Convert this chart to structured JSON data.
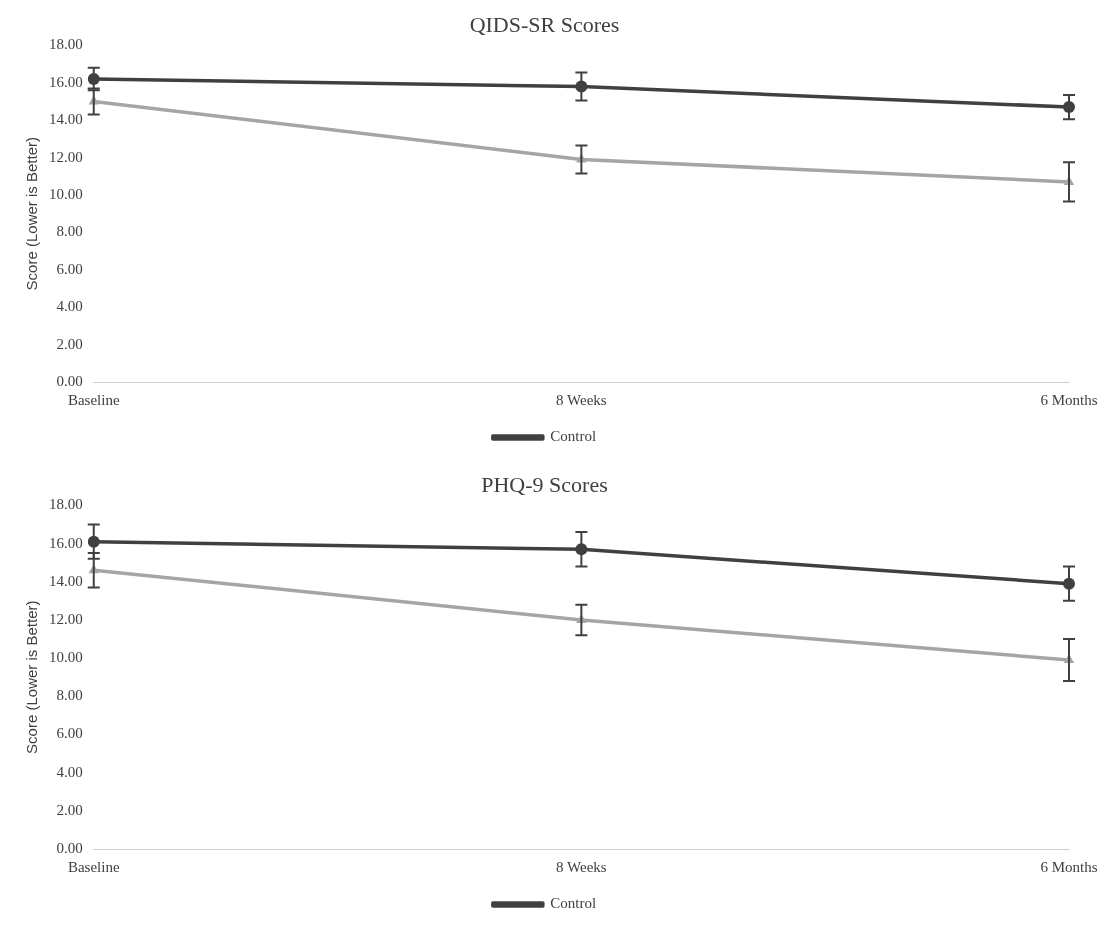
{
  "chart_data": [
    {
      "type": "line",
      "title": "QIDS-SR Scores",
      "ylabel": "Score (Lower is Better)",
      "categories": [
        "Baseline",
        "8 Weeks",
        "6 Months"
      ],
      "series": [
        {
          "name": "Control",
          "color": "#404040",
          "marker": "circle",
          "values": [
            16.2,
            15.8,
            14.7
          ],
          "errors": [
            0.6,
            0.75,
            0.65
          ]
        },
        {
          "color": "#a5a5a5",
          "marker": "triangle",
          "values": [
            15.0,
            11.9,
            10.7
          ],
          "errors": [
            0.7,
            0.75,
            1.05
          ]
        }
      ],
      "ylim": [
        0,
        18
      ],
      "yticks": [
        {
          "value": 0,
          "label": "0.00"
        },
        {
          "value": 2,
          "label": "2.00"
        },
        {
          "value": 4,
          "label": "4.00"
        },
        {
          "value": 6,
          "label": "6.00"
        },
        {
          "value": 8,
          "label": "8.00"
        },
        {
          "value": 10,
          "label": "10.00"
        },
        {
          "value": 12,
          "label": "12.00"
        },
        {
          "value": 14,
          "label": "14.00"
        },
        {
          "value": 16,
          "label": "16.00"
        },
        {
          "value": 18,
          "label": "18.00"
        }
      ],
      "grid": false,
      "legend": "bottom"
    },
    {
      "type": "line",
      "title": "PHQ-9 Scores",
      "ylabel": "Score (Lower is Better)",
      "categories": [
        "Baseline",
        "8 Weeks",
        "6 Months"
      ],
      "series": [
        {
          "name": "Control",
          "color": "#404040",
          "marker": "circle",
          "values": [
            16.1,
            15.7,
            13.9
          ],
          "errors": [
            0.9,
            0.9,
            0.9
          ]
        },
        {
          "color": "#a5a5a5",
          "marker": "triangle",
          "values": [
            14.6,
            12.0,
            9.9
          ],
          "errors": [
            0.9,
            0.8,
            1.1
          ]
        }
      ],
      "ylim": [
        0,
        18
      ],
      "yticks": [
        {
          "value": 0,
          "label": "0.00"
        },
        {
          "value": 2,
          "label": "2.00"
        },
        {
          "value": 4,
          "label": "4.00"
        },
        {
          "value": 6,
          "label": "6.00"
        },
        {
          "value": 8,
          "label": "8.00"
        },
        {
          "value": 10,
          "label": "10.00"
        },
        {
          "value": 12,
          "label": "12.00"
        },
        {
          "value": 14,
          "label": "14.00"
        },
        {
          "value": 16,
          "label": "16.00"
        },
        {
          "value": 18,
          "label": "18.00"
        }
      ],
      "grid": false,
      "legend": "bottom"
    }
  ]
}
